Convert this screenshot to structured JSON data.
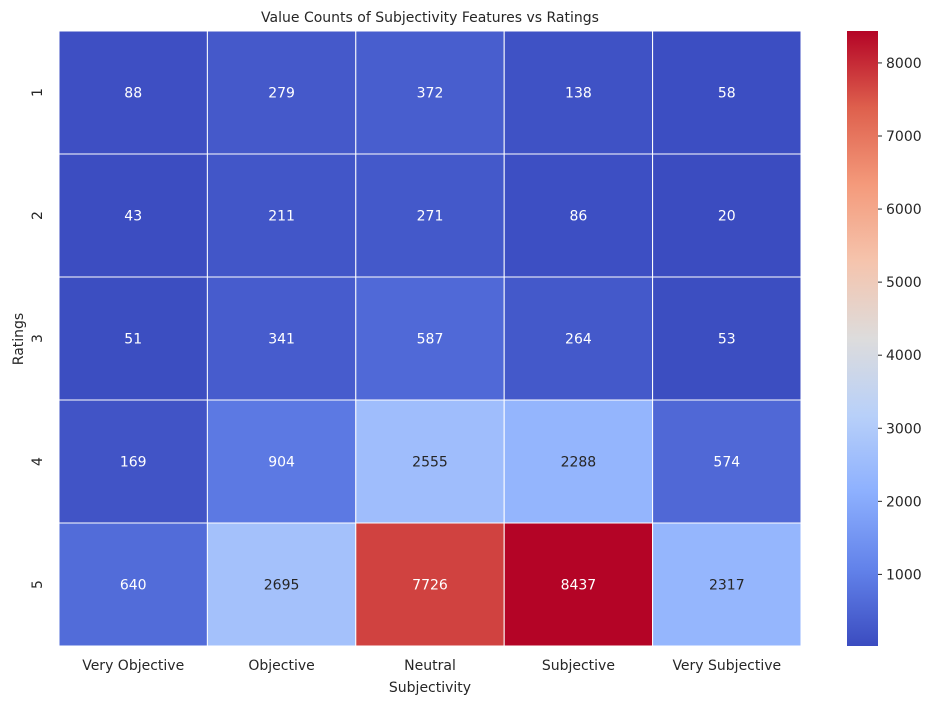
{
  "chart_data": {
    "type": "heatmap",
    "title": "Value Counts of Subjectivity Features vs Ratings",
    "xlabel": "Subjectivity",
    "ylabel": "Ratings",
    "x_categories": [
      "Very Objective",
      "Objective",
      "Neutral",
      "Subjective",
      "Very Subjective"
    ],
    "y_categories": [
      "1",
      "2",
      "3",
      "4",
      "5"
    ],
    "values": [
      [
        88,
        279,
        372,
        138,
        58
      ],
      [
        43,
        211,
        271,
        86,
        20
      ],
      [
        51,
        341,
        587,
        264,
        53
      ],
      [
        169,
        904,
        2555,
        2288,
        574
      ],
      [
        640,
        2695,
        7726,
        8437,
        2317
      ]
    ],
    "colormap": "coolwarm",
    "colorbar": {
      "vmin": 20,
      "vmax": 8437,
      "ticks": [
        1000,
        2000,
        3000,
        4000,
        5000,
        6000,
        7000,
        8000
      ],
      "tick_labels": [
        "1000",
        "2000",
        "3000",
        "4000",
        "5000",
        "6000",
        "7000",
        "8000"
      ]
    },
    "annotations": true,
    "grid_lines_color": "#ffffff"
  }
}
